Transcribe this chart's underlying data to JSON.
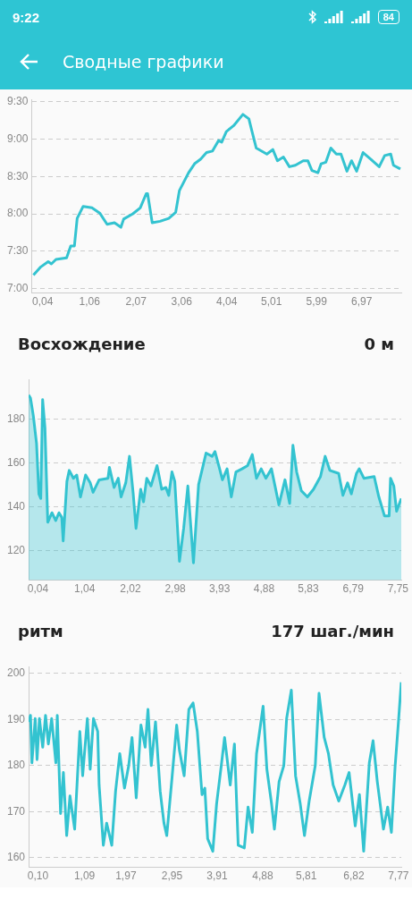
{
  "chart_data": [
    {
      "type": "line",
      "title": "Сводные графики",
      "annotations": [
        "9:22",
        "84"
      ],
      "grid": "y",
      "marker": "none",
      "legend": false,
      "xlim": [
        -0.2,
        7.83
      ],
      "xticks": [
        {
          "value": 0.04,
          "label": "0,04"
        },
        {
          "value": 1.06,
          "label": "1,06"
        },
        {
          "value": 2.07,
          "label": "2,07"
        },
        {
          "value": 3.06,
          "label": "3,06"
        },
        {
          "value": 4.04,
          "label": "4,04"
        },
        {
          "value": 5.01,
          "label": "5,01"
        },
        {
          "value": 5.99,
          "label": "5,99"
        },
        {
          "value": 6.97,
          "label": "6,97"
        }
      ],
      "ylim": [
        6.94,
        9.53
      ],
      "yticks": [
        {
          "value": 7,
          "label": "7:00"
        },
        {
          "value": 7.5,
          "label": "7:30"
        },
        {
          "value": 8,
          "label": "8:00"
        },
        {
          "value": 8.5,
          "label": "8:30"
        },
        {
          "value": 9,
          "label": "9:00"
        },
        {
          "value": 9.5,
          "label": "9:30"
        }
      ],
      "series": [
        {
          "color": "#33c3d0",
          "x": [
            -0.16,
            0,
            0.16,
            0.23,
            0.33,
            0.56,
            0.65,
            0.73,
            0.79,
            0.92,
            1.11,
            1.28,
            1.44,
            1.6,
            1.74,
            1.8,
            2,
            2.16,
            2.29,
            2.32,
            2.42,
            2.59,
            2.78,
            2.93,
            3.01,
            3.11,
            3.21,
            3.34,
            3.47,
            3.6,
            3.73,
            3.86,
            3.93,
            4.03,
            4.19,
            4.39,
            4.52,
            4.58,
            4.68,
            4.91,
            5.04,
            5.14,
            5.27,
            5.4,
            5.53,
            5.7,
            5.8,
            5.89,
            6.02,
            6.09,
            6.19,
            6.3,
            6.42,
            6.52,
            6.65,
            6.75,
            6.86,
            7,
            7.17,
            7.35,
            7.47,
            7.6,
            7.66,
            7.81
          ],
          "values": [
            7.18,
            7.29,
            7.36,
            7.33,
            7.39,
            7.41,
            7.57,
            7.57,
            7.94,
            8.1,
            8.08,
            8.01,
            7.86,
            7.88,
            7.82,
            7.93,
            8,
            8.08,
            8.27,
            8.27,
            7.88,
            7.9,
            7.94,
            8.02,
            8.31,
            8.43,
            8.55,
            8.67,
            8.73,
            8.82,
            8.84,
            8.98,
            8.96,
            9.1,
            9.18,
            9.33,
            9.27,
            9.12,
            8.88,
            8.8,
            8.86,
            8.71,
            8.76,
            8.63,
            8.65,
            8.71,
            8.71,
            8.58,
            8.55,
            8.67,
            8.69,
            8.88,
            8.8,
            8.8,
            8.57,
            8.71,
            8.57,
            8.82,
            8.73,
            8.63,
            8.78,
            8.8,
            8.65,
            8.6
          ]
        }
      ]
    },
    {
      "type": "area",
      "title": "Восхождение",
      "subtitle": "0 м",
      "grid": "y",
      "marker": "none",
      "legend": false,
      "xlim": [
        -0.16,
        7.82
      ],
      "xticks": [
        {
          "value": 0.04,
          "label": "0,04"
        },
        {
          "value": 1.04,
          "label": "1,04"
        },
        {
          "value": 2.02,
          "label": "2,02"
        },
        {
          "value": 2.98,
          "label": "2,98"
        },
        {
          "value": 3.93,
          "label": "3,93"
        },
        {
          "value": 4.88,
          "label": "4,88"
        },
        {
          "value": 5.83,
          "label": "5,83"
        },
        {
          "value": 6.79,
          "label": "6,79"
        },
        {
          "value": 7.75,
          "label": "7,75"
        }
      ],
      "ylim": [
        106.7,
        198.1
      ],
      "yticks": [
        120,
        140,
        160,
        180
      ],
      "series": [
        {
          "color": "#33c3d0",
          "x": [
            -0.16,
            -0.12,
            -0.06,
            0.01,
            0.06,
            0.1,
            0.14,
            0.19,
            0.25,
            0.34,
            0.42,
            0.49,
            0.55,
            0.58,
            0.66,
            0.71,
            0.8,
            0.87,
            0.95,
            1.06,
            1.16,
            1.22,
            1.35,
            1.54,
            1.57,
            1.67,
            1.76,
            1.82,
            1.92,
            2,
            2.08,
            2.14,
            2.24,
            2.3,
            2.37,
            2.46,
            2.59,
            2.69,
            2.78,
            2.84,
            2.91,
            2.97,
            3.07,
            3.16,
            3.25,
            3.37,
            3.48,
            3.64,
            3.77,
            3.83,
            3.93,
            3.99,
            4.09,
            4.18,
            4.28,
            4.41,
            4.53,
            4.63,
            4.72,
            4.82,
            4.92,
            5.04,
            5.2,
            5.33,
            5.43,
            5.5,
            5.58,
            5.68,
            5.81,
            5.94,
            6.09,
            6.19,
            6.29,
            6.48,
            6.57,
            6.67,
            6.75,
            6.86,
            6.92,
            7.02,
            7.24,
            7.34,
            7.46,
            7.56,
            7.59,
            7.66,
            7.72,
            7.82
          ],
          "values": [
            191,
            189.6,
            181.7,
            168.9,
            146,
            143.9,
            188.9,
            176,
            133.1,
            137.4,
            133.9,
            137.4,
            135.3,
            124.6,
            151.7,
            156.7,
            153.1,
            154.6,
            144.6,
            154.6,
            151,
            146.7,
            152.4,
            153.1,
            158.1,
            148.9,
            153.1,
            144.6,
            151,
            163.1,
            146,
            130.3,
            148.1,
            142.4,
            153.1,
            149.6,
            158.9,
            148.1,
            148.9,
            145.3,
            156,
            151.7,
            115.3,
            130.3,
            149.6,
            114.6,
            150.3,
            164.6,
            163.1,
            165.3,
            157.4,
            152.4,
            157.4,
            144.6,
            156,
            157.4,
            158.9,
            163.9,
            153.1,
            157.4,
            153.1,
            157.4,
            141,
            152.4,
            141.7,
            168.1,
            156,
            147.4,
            144.6,
            148.1,
            153.9,
            163.1,
            156.7,
            155.3,
            145.3,
            151,
            146,
            155.3,
            157.4,
            153.1,
            153.9,
            144.6,
            136,
            136,
            153.1,
            149.6,
            138.1,
            143.9
          ]
        }
      ]
    },
    {
      "type": "line",
      "title": "ритм",
      "subtitle": "177 шаг./мин",
      "grid": "y",
      "marker": "none",
      "legend": false,
      "xlim": [
        -0.1,
        7.83
      ],
      "xticks": [
        {
          "value": 0.1,
          "label": "0,10"
        },
        {
          "value": 1.09,
          "label": "1,09"
        },
        {
          "value": 1.97,
          "label": "1,97"
        },
        {
          "value": 2.95,
          "label": "2,95"
        },
        {
          "value": 3.91,
          "label": "3,91"
        },
        {
          "value": 4.88,
          "label": "4,88"
        },
        {
          "value": 5.81,
          "label": "5,81"
        },
        {
          "value": 6.82,
          "label": "6,82"
        },
        {
          "value": 7.77,
          "label": "7,77"
        }
      ],
      "ylim": [
        157.9,
        201.5
      ],
      "yticks": [
        160,
        170,
        180,
        190,
        200
      ],
      "series": [
        {
          "color": "#33c3d0",
          "x": [
            -0.1,
            -0.06,
            -0.03,
            0.04,
            0.08,
            0.13,
            0.2,
            0.26,
            0.32,
            0.39,
            0.48,
            0.51,
            0.58,
            0.64,
            0.71,
            0.78,
            0.88,
            0.99,
            1.05,
            1.15,
            1.21,
            1.28,
            1.37,
            1.4,
            1.49,
            1.56,
            1.67,
            1.75,
            1.84,
            1.94,
            2.03,
            2.1,
            2.19,
            2.29,
            2.38,
            2.44,
            2.51,
            2.6,
            2.7,
            2.78,
            2.84,
            2.95,
            3.05,
            3.11,
            3.21,
            3.31,
            3.4,
            3.49,
            3.59,
            3.65,
            3.71,
            3.82,
            3.9,
            4,
            4.07,
            4.19,
            4.28,
            4.36,
            4.49,
            4.57,
            4.66,
            4.75,
            4.89,
            4.97,
            5.07,
            5.13,
            5.23,
            5.33,
            5.39,
            5.49,
            5.58,
            5.68,
            5.77,
            5.87,
            6,
            6.08,
            6.19,
            6.28,
            6.38,
            6.5,
            6.63,
            6.72,
            6.85,
            6.94,
            7.03,
            7.15,
            7.23,
            7.32,
            7.45,
            7.54,
            7.62,
            7.7,
            7.77,
            7.83
          ],
          "values": [
            189.5,
            190.9,
            180.6,
            190.2,
            181.3,
            190.2,
            184,
            190.9,
            184.7,
            190.2,
            180.6,
            190.9,
            169.6,
            178.5,
            164.8,
            173.4,
            166.2,
            187.4,
            177.8,
            190.2,
            179.2,
            190.2,
            187.4,
            175.8,
            162.7,
            167.5,
            162.7,
            174.4,
            182.6,
            175.1,
            180,
            186.1,
            173,
            188.8,
            184,
            192.2,
            180,
            189.5,
            174.4,
            167.5,
            164.8,
            177.2,
            188.8,
            183.3,
            177.8,
            192.2,
            193.6,
            187.4,
            173.7,
            175.1,
            164.1,
            161.4,
            171.7,
            180,
            186.1,
            175.8,
            184.7,
            162.7,
            162.1,
            171,
            165.5,
            182.6,
            192.9,
            179.2,
            171.7,
            166.2,
            176.5,
            180,
            190.2,
            196.4,
            177.8,
            171.7,
            164.8,
            172.3,
            180,
            195.7,
            186.1,
            182.6,
            175.8,
            172.3,
            175.8,
            178.5,
            166.9,
            173.7,
            161.4,
            180.6,
            185.4,
            176.5,
            166.2,
            171,
            165.5,
            180,
            189.5,
            198.1
          ]
        }
      ]
    }
  ]
}
